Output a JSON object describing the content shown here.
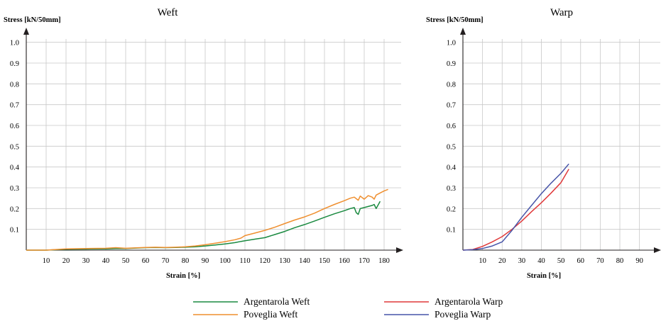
{
  "legend": [
    {
      "label": "Argentarola Weft",
      "color": "#1a8a40"
    },
    {
      "label": "Poveglia Weft",
      "color": "#ef8f2f"
    },
    {
      "label": "Argentarola Warp",
      "color": "#e0393a"
    },
    {
      "label": "Poveglia Warp",
      "color": "#4754a8"
    }
  ],
  "chart_data": [
    {
      "type": "line",
      "title": "Weft",
      "xlabel": "Strain [%]",
      "ylabel": "Stress [kN/50mm]",
      "xlim": [
        0,
        185
      ],
      "ylim": [
        0,
        1.05
      ],
      "xticks": [
        10,
        20,
        30,
        40,
        50,
        60,
        70,
        80,
        90,
        100,
        110,
        120,
        130,
        140,
        150,
        160,
        170,
        180
      ],
      "yticks": [
        0.1,
        0.2,
        0.3,
        0.4,
        0.5,
        0.6,
        0.7,
        0.8,
        0.9,
        1.0
      ],
      "grid": true,
      "series": [
        {
          "name": "Argentarola Weft",
          "color": "#1a8a40",
          "x": [
            0,
            10,
            20,
            30,
            40,
            45,
            50,
            55,
            60,
            65,
            70,
            75,
            80,
            85,
            90,
            95,
            100,
            105,
            108,
            110,
            115,
            120,
            125,
            130,
            135,
            140,
            145,
            150,
            155,
            160,
            163,
            165,
            166,
            167,
            168,
            170,
            172,
            174,
            175,
            176,
            178
          ],
          "y": [
            0,
            0,
            0.004,
            0.005,
            0.006,
            0.008,
            0.008,
            0.01,
            0.012,
            0.013,
            0.012,
            0.013,
            0.014,
            0.016,
            0.02,
            0.025,
            0.03,
            0.036,
            0.042,
            0.045,
            0.053,
            0.06,
            0.075,
            0.09,
            0.108,
            0.123,
            0.14,
            0.158,
            0.175,
            0.19,
            0.2,
            0.205,
            0.18,
            0.172,
            0.2,
            0.205,
            0.21,
            0.215,
            0.22,
            0.2,
            0.235
          ]
        },
        {
          "name": "Poveglia Weft",
          "color": "#ef8f2f",
          "x": [
            0,
            10,
            20,
            30,
            40,
            45,
            50,
            55,
            60,
            65,
            70,
            75,
            80,
            85,
            90,
            95,
            100,
            105,
            108,
            110,
            115,
            120,
            125,
            130,
            135,
            140,
            145,
            150,
            155,
            160,
            163,
            165,
            167,
            168,
            170,
            172,
            174,
            175,
            176,
            178,
            180,
            182
          ],
          "y": [
            0,
            0,
            0.006,
            0.008,
            0.009,
            0.012,
            0.009,
            0.011,
            0.013,
            0.014,
            0.013,
            0.014,
            0.016,
            0.02,
            0.026,
            0.033,
            0.041,
            0.05,
            0.058,
            0.07,
            0.082,
            0.095,
            0.11,
            0.128,
            0.145,
            0.16,
            0.178,
            0.2,
            0.22,
            0.238,
            0.25,
            0.255,
            0.24,
            0.26,
            0.245,
            0.262,
            0.255,
            0.245,
            0.265,
            0.275,
            0.285,
            0.292
          ]
        }
      ]
    },
    {
      "type": "line",
      "title": "Warp",
      "xlabel": "Strain [%]",
      "ylabel": "Stress [kN/50mm]",
      "xlim": [
        0,
        97
      ],
      "ylim": [
        0,
        1.05
      ],
      "xticks": [
        10,
        20,
        30,
        40,
        50,
        60,
        70,
        80,
        90
      ],
      "yticks": [
        0.1,
        0.2,
        0.3,
        0.4,
        0.5,
        0.6,
        0.7,
        0.8,
        0.9,
        1.0
      ],
      "grid": true,
      "series": [
        {
          "name": "Argentarola Warp",
          "color": "#e0393a",
          "x": [
            0,
            5,
            10,
            15,
            20,
            25,
            30,
            35,
            40,
            45,
            50,
            54
          ],
          "y": [
            0,
            0.003,
            0.018,
            0.04,
            0.065,
            0.1,
            0.14,
            0.185,
            0.228,
            0.275,
            0.325,
            0.39
          ]
        },
        {
          "name": "Poveglia Warp",
          "color": "#4754a8",
          "x": [
            0,
            5,
            10,
            15,
            20,
            25,
            30,
            35,
            40,
            45,
            50,
            54
          ],
          "y": [
            0,
            0.002,
            0.008,
            0.02,
            0.04,
            0.095,
            0.158,
            0.215,
            0.272,
            0.323,
            0.37,
            0.415
          ]
        }
      ]
    }
  ]
}
